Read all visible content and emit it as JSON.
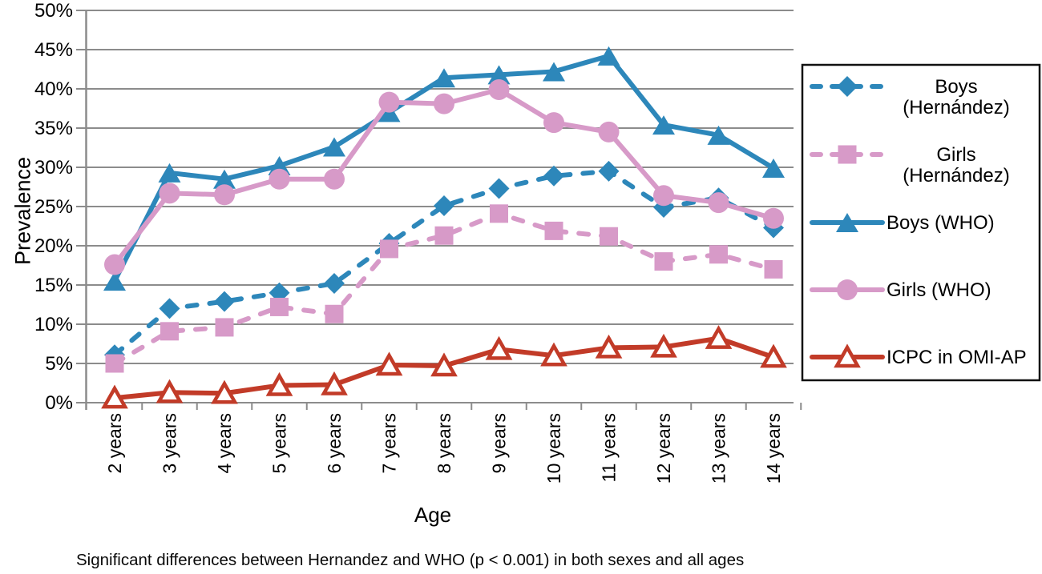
{
  "caption": "Significant differences between Hernandez and WHO (p < 0.001) in both sexes and all ages",
  "palette": {
    "blue": "#2d87ba",
    "pink": "#d79ac8",
    "red": "#c23b28",
    "grid": "#8c8c8c",
    "text": "#000000",
    "legend_border": "#111111"
  },
  "chart_data": {
    "type": "line",
    "title": "",
    "xlabel": "Age",
    "ylabel": "Prevalence",
    "ylim": [
      0,
      50
    ],
    "ytick_step": 5,
    "ytick_labels": [
      "0%",
      "5%",
      "10%",
      "15%",
      "20%",
      "25%",
      "30%",
      "35%",
      "40%",
      "45%",
      "50%"
    ],
    "grid": "horizontal",
    "legend_position": "right",
    "categories": [
      "2 years",
      "3 years",
      "4 years",
      "5 years",
      "6 years",
      "7 years",
      "8 years",
      "9 years",
      "10 years",
      "11 years",
      "12 years",
      "13 years",
      "14 years"
    ],
    "series": [
      {
        "name": "Boys (Hernández)",
        "legend_lines": [
          "Boys",
          "(Hernández)"
        ],
        "color": "#2d87ba",
        "line": "dashed",
        "marker": "diamond",
        "values": [
          6.1,
          12.0,
          12.9,
          14.0,
          15.2,
          20.3,
          25.1,
          27.3,
          28.9,
          29.5,
          24.9,
          26.1,
          22.3
        ]
      },
      {
        "name": "Girls (Hernández)",
        "legend_lines": [
          "Girls",
          "(Hernández)"
        ],
        "color": "#d79ac8",
        "line": "dashed",
        "marker": "square",
        "values": [
          5.0,
          9.1,
          9.6,
          12.2,
          11.3,
          19.6,
          21.3,
          24.1,
          21.9,
          21.2,
          18.0,
          18.9,
          17.0
        ]
      },
      {
        "name": "Boys (WHO)",
        "legend_lines": [
          "Boys (WHO)"
        ],
        "color": "#2d87ba",
        "line": "solid",
        "marker": "triangle",
        "values": [
          15.5,
          29.3,
          28.5,
          30.2,
          32.6,
          37.0,
          41.4,
          41.8,
          42.2,
          44.2,
          35.4,
          34.1,
          29.9
        ]
      },
      {
        "name": "Girls (WHO)",
        "legend_lines": [
          "Girls (WHO)"
        ],
        "color": "#d79ac8",
        "line": "solid",
        "marker": "circle",
        "values": [
          17.6,
          26.7,
          26.5,
          28.5,
          28.5,
          38.3,
          38.1,
          39.9,
          35.7,
          34.5,
          26.4,
          25.5,
          23.5
        ]
      },
      {
        "name": "ICPC in OMI-AP",
        "legend_lines": [
          "ICPC in OMI-AP"
        ],
        "color": "#c23b28",
        "line": "solid",
        "marker": "triangle-open",
        "values": [
          0.6,
          1.3,
          1.2,
          2.2,
          2.3,
          4.8,
          4.7,
          6.8,
          6.0,
          7.0,
          7.1,
          8.2,
          5.8
        ]
      }
    ]
  }
}
